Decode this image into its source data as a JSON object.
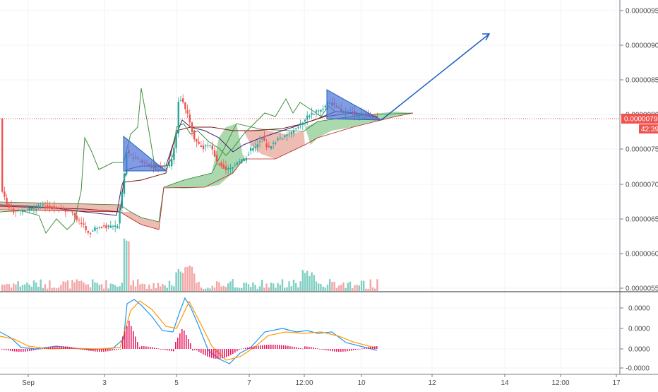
{
  "chart_data": {
    "type": "candlestick",
    "title": "",
    "price_axis": {
      "ticks": [
        "0.00000950",
        "0.00000900",
        "0.00000850",
        "0.00000800",
        "0.00000750",
        "0.00000700",
        "0.00000650",
        "0.00000600",
        "0.00000550"
      ],
      "ylim": [
        5.47e-06,
        9.64e-06
      ]
    },
    "time_axis": {
      "labels": [
        "Sep",
        "3",
        "5",
        "7",
        "12:00",
        "10",
        "12",
        "14",
        "12:00",
        "17"
      ]
    },
    "current_price": {
      "label": "0.00000793",
      "countdown": "42:39",
      "color": "#ef5350"
    },
    "macd_axis": {
      "ticks": [
        "0.0000",
        "0.0000",
        "0.0000",
        "-0.0000"
      ]
    },
    "colors": {
      "up": "#26a69a",
      "down": "#ef5350",
      "volume_up": "#7fcfc3",
      "volume_down": "#f3a6a6",
      "cloud_bull": "#86c98a",
      "cloud_bear": "#e6a193",
      "tenkan": "#4a1f6d",
      "kijun": "#7b1a1a",
      "chikou": "#3d8f3d",
      "macd_line": "#2196f3",
      "signal_line": "#ff9800",
      "histogram": "#e91e63",
      "drawing": "#1c5fbf",
      "triangle_fill": "#4a73d9"
    }
  }
}
